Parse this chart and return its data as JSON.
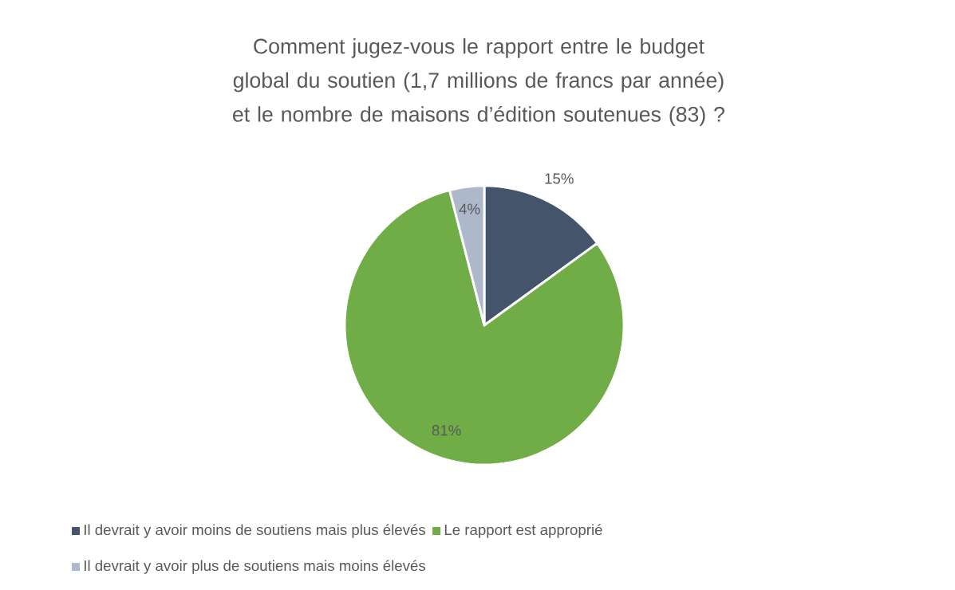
{
  "chart_data": {
    "type": "pie",
    "title": "Comment jugez-vous le rapport entre le budget global du soutien (1,7 millions de francs par année) et le nombre de maisons d’édition soutenues (83) ?",
    "categories": [
      "Il devrait y avoir moins de soutiens mais plus élevés",
      "Le rapport est approprié",
      "Il devrait y avoir plus de soutiens mais moins élevés"
    ],
    "values": [
      15,
      81,
      4
    ],
    "colors": [
      "#44546a",
      "#70ad47",
      "#adb9ca"
    ],
    "value_labels": [
      "15%",
      "81%",
      "4%"
    ],
    "legend": "bottom"
  }
}
